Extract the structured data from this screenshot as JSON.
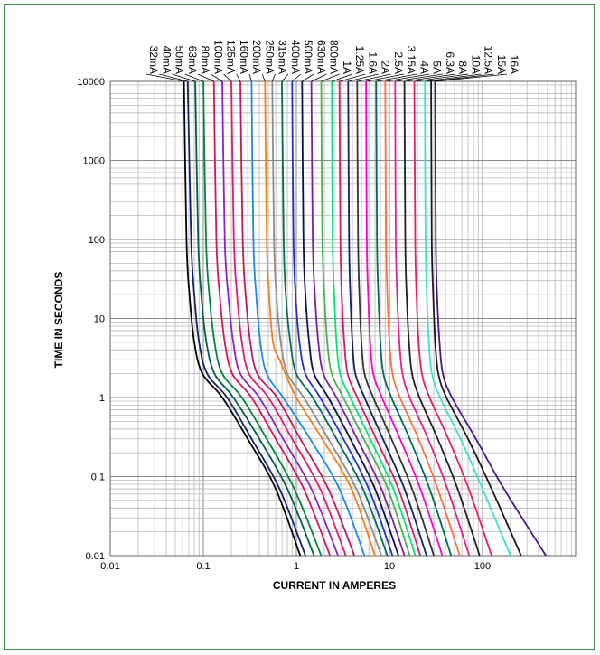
{
  "chart_data": {
    "type": "line",
    "xlabel": "CURRENT IN AMPERES",
    "ylabel": "TIME IN SECONDS",
    "xscale": "log",
    "yscale": "log",
    "xlim": [
      0.01,
      1000
    ],
    "ylim": [
      0.01,
      10000
    ],
    "grid": true,
    "x_ticks": [
      "0.01",
      "0.1",
      "1",
      "10",
      "100"
    ],
    "y_ticks": [
      "10000",
      "1000",
      "100",
      "10",
      "1",
      "0.1",
      "0.01"
    ],
    "series": [
      {
        "name": "32mA",
        "color": "#000000",
        "points": [
          [
            0.062,
            10000
          ],
          [
            0.066,
            100
          ],
          [
            0.071,
            20
          ],
          [
            0.08,
            5
          ],
          [
            0.098,
            2
          ],
          [
            0.16,
            1
          ],
          [
            0.3,
            0.3
          ],
          [
            0.6,
            0.07
          ],
          [
            1.1,
            0.01
          ]
        ]
      },
      {
        "name": "40mA",
        "color": "#14206e",
        "points": [
          [
            0.068,
            10000
          ],
          [
            0.074,
            100
          ],
          [
            0.08,
            20
          ],
          [
            0.09,
            5
          ],
          [
            0.11,
            2
          ],
          [
            0.18,
            1
          ],
          [
            0.33,
            0.3
          ],
          [
            0.66,
            0.07
          ],
          [
            1.25,
            0.01
          ]
        ]
      },
      {
        "name": "50mA",
        "color": "#005c4b",
        "points": [
          [
            0.082,
            10000
          ],
          [
            0.088,
            100
          ],
          [
            0.095,
            20
          ],
          [
            0.108,
            5
          ],
          [
            0.132,
            2
          ],
          [
            0.21,
            1
          ],
          [
            0.4,
            0.3
          ],
          [
            0.8,
            0.07
          ],
          [
            1.55,
            0.01
          ]
        ]
      },
      {
        "name": "63mA",
        "color": "#00843d",
        "points": [
          [
            0.1,
            10000
          ],
          [
            0.107,
            100
          ],
          [
            0.116,
            20
          ],
          [
            0.132,
            5
          ],
          [
            0.16,
            2
          ],
          [
            0.26,
            1
          ],
          [
            0.48,
            0.3
          ],
          [
            0.95,
            0.07
          ],
          [
            1.85,
            0.01
          ]
        ]
      },
      {
        "name": "80mA",
        "color": "#d4145a",
        "points": [
          [
            0.13,
            10000
          ],
          [
            0.138,
            100
          ],
          [
            0.15,
            20
          ],
          [
            0.17,
            5
          ],
          [
            0.205,
            2
          ],
          [
            0.33,
            1
          ],
          [
            0.6,
            0.3
          ],
          [
            1.2,
            0.07
          ],
          [
            2.3,
            0.01
          ]
        ]
      },
      {
        "name": "100mA",
        "color": "#8b22cc",
        "points": [
          [
            0.16,
            10000
          ],
          [
            0.17,
            100
          ],
          [
            0.185,
            20
          ],
          [
            0.21,
            5
          ],
          [
            0.25,
            2
          ],
          [
            0.4,
            1
          ],
          [
            0.72,
            0.3
          ],
          [
            1.45,
            0.07
          ],
          [
            2.8,
            0.01
          ]
        ]
      },
      {
        "name": "125mA",
        "color": "#e8176f",
        "points": [
          [
            0.2,
            10000
          ],
          [
            0.213,
            100
          ],
          [
            0.23,
            20
          ],
          [
            0.26,
            5
          ],
          [
            0.31,
            2
          ],
          [
            0.5,
            1
          ],
          [
            0.9,
            0.3
          ],
          [
            1.8,
            0.07
          ],
          [
            3.4,
            0.01
          ]
        ]
      },
      {
        "name": "160mA",
        "color": "#c2185b",
        "points": [
          [
            0.25,
            10000
          ],
          [
            0.265,
            100
          ],
          [
            0.285,
            20
          ],
          [
            0.32,
            5
          ],
          [
            0.38,
            2
          ],
          [
            0.62,
            1
          ],
          [
            1.1,
            0.3
          ],
          [
            2.2,
            0.07
          ],
          [
            4.2,
            0.01
          ]
        ]
      },
      {
        "name": "200mA",
        "color": "#1e88e5",
        "points": [
          [
            0.33,
            10000
          ],
          [
            0.345,
            100
          ],
          [
            0.37,
            20
          ],
          [
            0.41,
            5
          ],
          [
            0.48,
            2
          ],
          [
            0.72,
            1
          ],
          [
            1.4,
            0.3
          ],
          [
            2.9,
            0.07
          ],
          [
            5.4,
            0.01
          ]
        ]
      },
      {
        "name": "250mA",
        "color": "#f57f17",
        "points": [
          [
            0.46,
            10000
          ],
          [
            0.48,
            100
          ],
          [
            0.51,
            20
          ],
          [
            0.56,
            5
          ],
          [
            0.66,
            3
          ],
          [
            1.0,
            1
          ],
          [
            1.9,
            0.3
          ],
          [
            3.9,
            0.07
          ],
          [
            7.0,
            0.01
          ]
        ]
      },
      {
        "name": "315mA",
        "color": "#8c8c8c",
        "points": [
          [
            0.55,
            10000
          ],
          [
            0.575,
            100
          ],
          [
            0.61,
            20
          ],
          [
            0.68,
            5
          ],
          [
            0.8,
            2
          ],
          [
            1.2,
            1
          ],
          [
            2.2,
            0.3
          ],
          [
            4.4,
            0.07
          ],
          [
            8.2,
            0.01
          ]
        ]
      },
      {
        "name": "400mA",
        "color": "#006d5b",
        "points": [
          [
            0.7,
            10000
          ],
          [
            0.73,
            100
          ],
          [
            0.77,
            20
          ],
          [
            0.86,
            5
          ],
          [
            1.0,
            2
          ],
          [
            1.5,
            1
          ],
          [
            2.7,
            0.3
          ],
          [
            5.2,
            0.07
          ],
          [
            9.5,
            0.01
          ]
        ]
      },
      {
        "name": "500mA",
        "color": "#2233cc",
        "points": [
          [
            0.9,
            10000
          ],
          [
            0.93,
            100
          ],
          [
            0.98,
            20
          ],
          [
            1.08,
            5
          ],
          [
            1.25,
            2
          ],
          [
            1.8,
            1
          ],
          [
            3.2,
            0.3
          ],
          [
            6.0,
            0.07
          ],
          [
            10.8,
            0.01
          ]
        ]
      },
      {
        "name": "630mA",
        "color": "#0d1050",
        "points": [
          [
            1.15,
            10000
          ],
          [
            1.19,
            100
          ],
          [
            1.25,
            20
          ],
          [
            1.37,
            5
          ],
          [
            1.55,
            2
          ],
          [
            2.2,
            1
          ],
          [
            3.8,
            0.3
          ],
          [
            7.0,
            0.07
          ],
          [
            12.5,
            0.01
          ]
        ]
      },
      {
        "name": "800mA",
        "color": "#7b1fa2",
        "points": [
          [
            1.45,
            10000
          ],
          [
            1.5,
            100
          ],
          [
            1.58,
            20
          ],
          [
            1.72,
            5
          ],
          [
            1.95,
            2
          ],
          [
            2.7,
            1
          ],
          [
            4.5,
            0.3
          ],
          [
            8.2,
            0.07
          ],
          [
            14.5,
            0.01
          ]
        ]
      },
      {
        "name": "1A",
        "color": "#4caf50",
        "points": [
          [
            1.85,
            10000
          ],
          [
            1.9,
            100
          ],
          [
            2.0,
            20
          ],
          [
            2.15,
            5
          ],
          [
            2.4,
            2
          ],
          [
            3.2,
            1
          ],
          [
            5.3,
            0.3
          ],
          [
            9.6,
            0.07
          ],
          [
            16.5,
            0.01
          ]
        ]
      },
      {
        "name": "1.25A",
        "color": "#00e676",
        "points": [
          [
            2.4,
            10000
          ],
          [
            2.45,
            100
          ],
          [
            2.55,
            20
          ],
          [
            2.7,
            5
          ],
          [
            2.95,
            2
          ],
          [
            3.8,
            1
          ],
          [
            6.2,
            0.3
          ],
          [
            11.0,
            0.07
          ],
          [
            19.0,
            0.01
          ]
        ]
      },
      {
        "name": "1.6A",
        "color": "#d81b60",
        "points": [
          [
            2.9,
            10000
          ],
          [
            2.97,
            100
          ],
          [
            3.08,
            20
          ],
          [
            3.27,
            5
          ],
          [
            3.55,
            2
          ],
          [
            4.5,
            1
          ],
          [
            7.2,
            0.3
          ],
          [
            12.5,
            0.07
          ],
          [
            21.5,
            0.01
          ]
        ]
      },
      {
        "name": "2A",
        "color": "#102060",
        "points": [
          [
            3.6,
            10000
          ],
          [
            3.68,
            100
          ],
          [
            3.8,
            20
          ],
          [
            4.0,
            5
          ],
          [
            4.3,
            2
          ],
          [
            5.4,
            1
          ],
          [
            8.5,
            0.3
          ],
          [
            14.5,
            0.07
          ],
          [
            25.0,
            0.01
          ]
        ]
      },
      {
        "name": "2.5A",
        "color": "#333333",
        "points": [
          [
            4.5,
            10000
          ],
          [
            4.6,
            100
          ],
          [
            4.75,
            20
          ],
          [
            5.0,
            5
          ],
          [
            5.4,
            2
          ],
          [
            6.7,
            1
          ],
          [
            10.5,
            0.3
          ],
          [
            17.5,
            0.07
          ],
          [
            30.0,
            0.01
          ]
        ]
      },
      {
        "name": "3.15A",
        "color": "#ff00cc",
        "points": [
          [
            5.6,
            10000
          ],
          [
            5.7,
            100
          ],
          [
            5.9,
            20
          ],
          [
            6.2,
            5
          ],
          [
            6.7,
            2
          ],
          [
            8.3,
            1
          ],
          [
            13.0,
            0.3
          ],
          [
            21.5,
            0.07
          ],
          [
            37.0,
            0.01
          ]
        ]
      },
      {
        "name": "4A",
        "color": "#00695c",
        "points": [
          [
            7.2,
            10000
          ],
          [
            7.35,
            100
          ],
          [
            7.6,
            20
          ],
          [
            8.0,
            5
          ],
          [
            8.6,
            2
          ],
          [
            10.5,
            1
          ],
          [
            16.5,
            0.3
          ],
          [
            27.0,
            0.07
          ],
          [
            46.0,
            0.01
          ]
        ]
      },
      {
        "name": "5A",
        "color": "#ff7043",
        "points": [
          [
            9.0,
            10000
          ],
          [
            9.2,
            100
          ],
          [
            9.5,
            20
          ],
          [
            10.0,
            5
          ],
          [
            10.8,
            2
          ],
          [
            13.0,
            1
          ],
          [
            20.5,
            0.3
          ],
          [
            33.0,
            0.07
          ],
          [
            57.0,
            0.01
          ]
        ]
      },
      {
        "name": "6.3A",
        "color": "#e91e8c",
        "points": [
          [
            11.5,
            10000
          ],
          [
            11.7,
            100
          ],
          [
            12.1,
            20
          ],
          [
            12.8,
            5
          ],
          [
            13.8,
            2
          ],
          [
            16.5,
            1
          ],
          [
            26.0,
            0.3
          ],
          [
            42.0,
            0.07
          ],
          [
            72.0,
            0.01
          ]
        ]
      },
      {
        "name": "8A",
        "color": "#212121",
        "points": [
          [
            14.5,
            10000
          ],
          [
            14.8,
            100
          ],
          [
            15.3,
            20
          ],
          [
            16.2,
            5
          ],
          [
            17.5,
            2
          ],
          [
            21.0,
            1
          ],
          [
            33.0,
            0.3
          ],
          [
            54.0,
            0.07
          ],
          [
            93.0,
            0.01
          ]
        ]
      },
      {
        "name": "10A",
        "color": "#e91e63",
        "points": [
          [
            18.5,
            10000
          ],
          [
            18.9,
            100
          ],
          [
            19.5,
            20
          ],
          [
            20.6,
            5
          ],
          [
            22.3,
            2
          ],
          [
            27.0,
            1
          ],
          [
            43.0,
            0.3
          ],
          [
            71.0,
            0.07
          ],
          [
            125.0,
            0.01
          ]
        ]
      },
      {
        "name": "12.5A",
        "color": "#40e0d0",
        "points": [
          [
            24.0,
            10000
          ],
          [
            24.4,
            100
          ],
          [
            25.2,
            20
          ],
          [
            26.5,
            5
          ],
          [
            28.6,
            2
          ],
          [
            35.0,
            1
          ],
          [
            58.0,
            0.3
          ],
          [
            100.0,
            0.07
          ],
          [
            200.0,
            0.01
          ]
        ]
      },
      {
        "name": "15A",
        "color": "#1a1a1a",
        "points": [
          [
            28.0,
            10000
          ],
          [
            28.5,
            100
          ],
          [
            29.5,
            20
          ],
          [
            31.0,
            5
          ],
          [
            33.5,
            2
          ],
          [
            41.0,
            1
          ],
          [
            70.0,
            0.3
          ],
          [
            125.0,
            0.07
          ],
          [
            260.0,
            0.01
          ]
        ]
      },
      {
        "name": "16A",
        "color": "#4a148c",
        "points": [
          [
            31.0,
            10000
          ],
          [
            31.5,
            100
          ],
          [
            32.5,
            20
          ],
          [
            34.5,
            5
          ],
          [
            37.5,
            2
          ],
          [
            47.0,
            1
          ],
          [
            85.0,
            0.3
          ],
          [
            170.0,
            0.07
          ],
          [
            480.0,
            0.01
          ]
        ]
      }
    ]
  }
}
